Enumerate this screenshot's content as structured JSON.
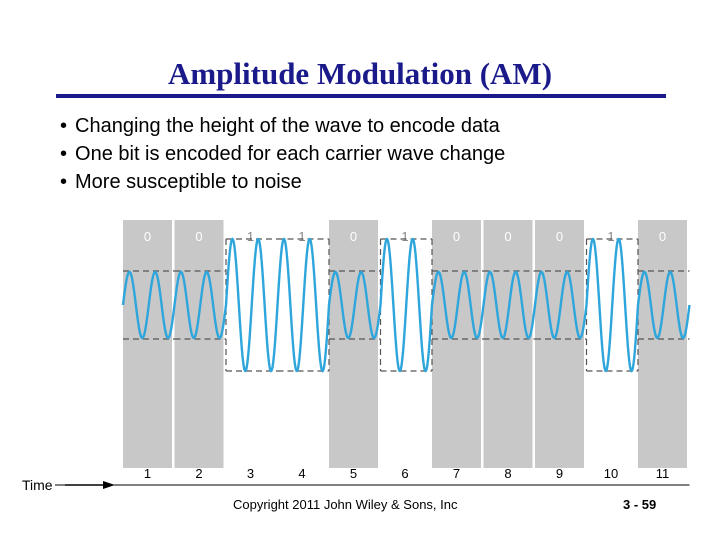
{
  "slide": {
    "title": "Amplitude Modulation (AM)",
    "bullets": [
      "Changing the height of the wave to encode data",
      "One bit is encoded for each carrier wave change",
      "More susceptible to noise"
    ],
    "bullet_glyph": "•"
  },
  "diagram": {
    "time_label": "Time",
    "bits": [
      "0",
      "0",
      "1",
      "1",
      "0",
      "1",
      "0",
      "0",
      "0",
      "1",
      "0"
    ],
    "time_ticks": [
      "1",
      "2",
      "3",
      "4",
      "5",
      "6",
      "7",
      "8",
      "9",
      "10",
      "11"
    ],
    "colors": {
      "shaded_band": "#c8c8c8",
      "wave": "#2ea6dc",
      "dashed_levels": "#555555",
      "band_text": "#ffffff"
    },
    "carrier_cycles_per_bit": 2,
    "high_amplitude_ratio": 1.0,
    "low_amplitude_ratio": 0.5
  },
  "footer": {
    "copyright": "Copyright 2011 John Wiley & Sons, Inc",
    "page_number": "3 - 59"
  }
}
